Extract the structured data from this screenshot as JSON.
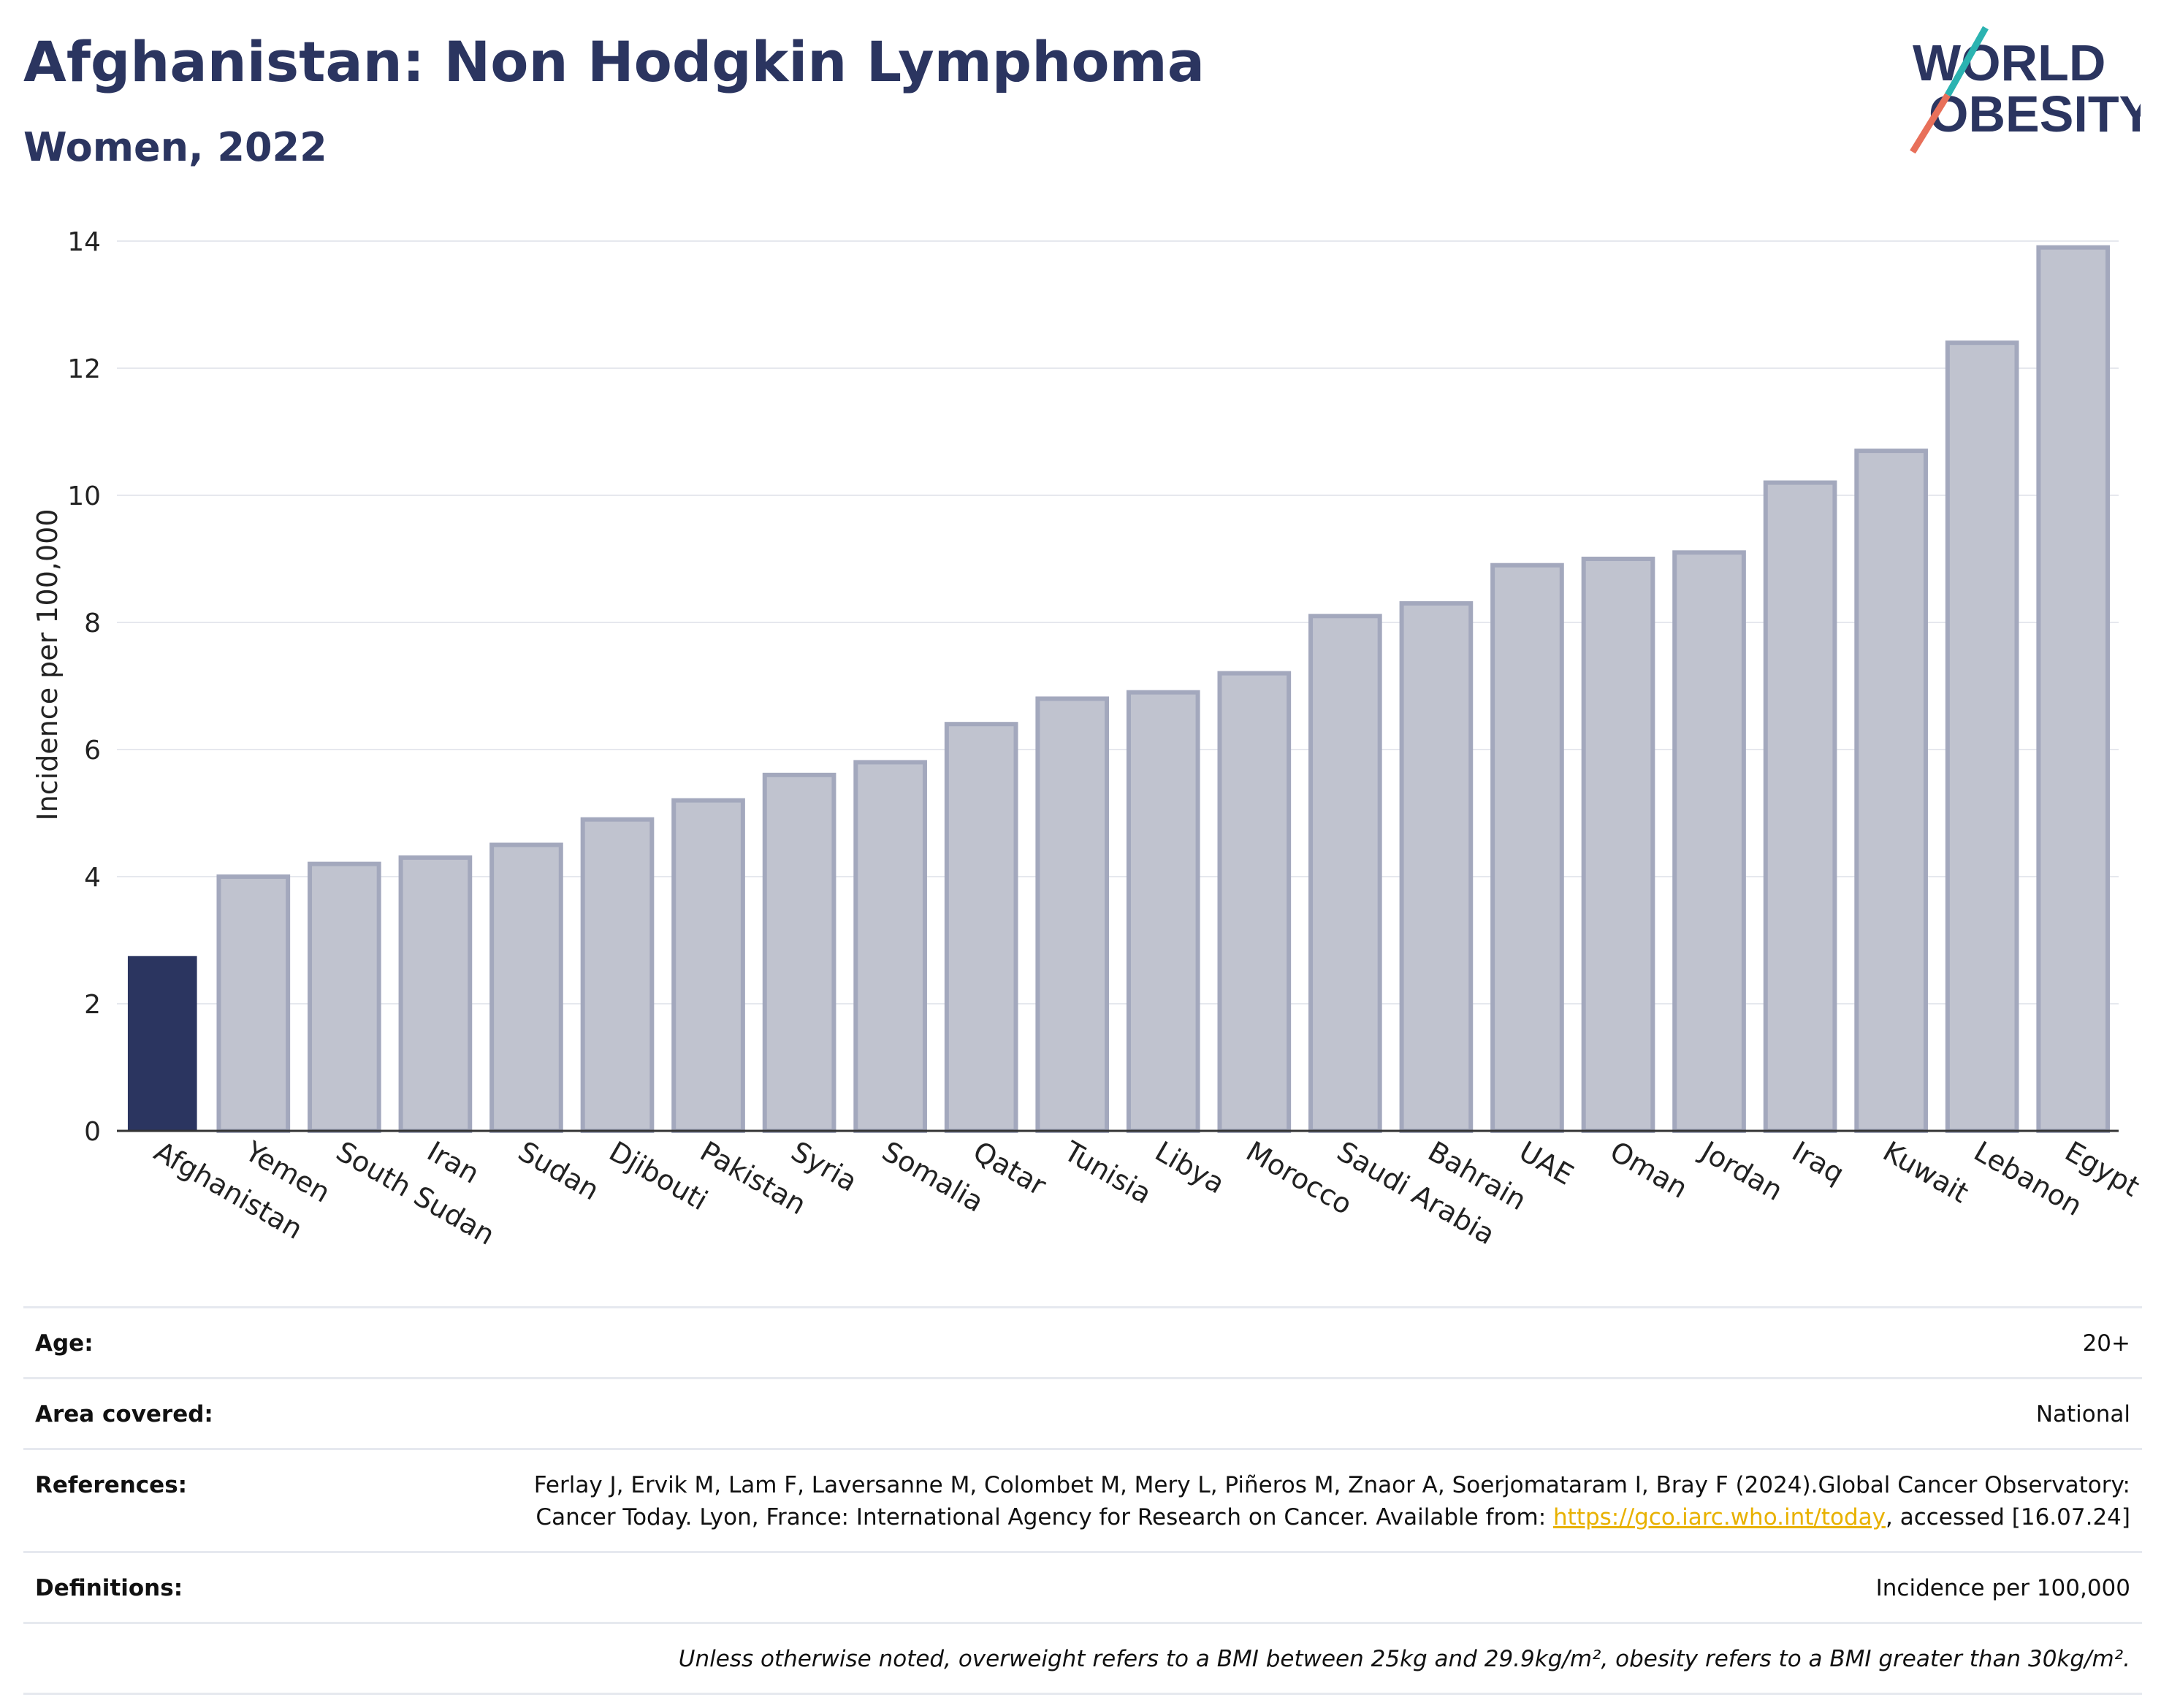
{
  "header": {
    "title": "Afghanistan: Non Hodgkin Lymphoma",
    "subtitle": "Women, 2022"
  },
  "logo": {
    "line1": "WORLD",
    "line2": "OBESITY",
    "colors": {
      "text": "#2b3560",
      "slash_teal": "#2bb3b1",
      "slash_coral": "#e8705a"
    }
  },
  "chart_data": {
    "type": "bar",
    "title": "",
    "xlabel": "",
    "ylabel": "Incidence per 100,000",
    "ylim": [
      0,
      14
    ],
    "yticks": [
      0,
      2,
      4,
      6,
      8,
      10,
      12,
      14
    ],
    "grid": true,
    "highlight_category": "Afghanistan",
    "colors": {
      "highlight": "#2b3560",
      "default_fill": "#c0c3cf",
      "default_stroke": "#a3a8bd"
    },
    "categories": [
      "Afghanistan",
      "Yemen",
      "South Sudan",
      "Iran",
      "Sudan",
      "Djibouti",
      "Pakistan",
      "Syria",
      "Somalia",
      "Qatar",
      "Tunisia",
      "Libya",
      "Morocco",
      "Saudi Arabia",
      "Bahrain",
      "UAE",
      "Oman",
      "Jordan",
      "Iraq",
      "Kuwait",
      "Lebanon",
      "Egypt"
    ],
    "values": [
      2.75,
      4.0,
      4.2,
      4.3,
      4.5,
      4.9,
      5.2,
      5.6,
      5.8,
      6.4,
      6.8,
      6.9,
      7.2,
      8.1,
      8.3,
      8.9,
      9.0,
      9.1,
      10.2,
      10.7,
      12.4,
      13.9
    ]
  },
  "info": {
    "rows": [
      {
        "label": "Age:",
        "value": "20+"
      },
      {
        "label": "Area covered:",
        "value": "National"
      },
      {
        "label": "References:",
        "value_before": "Ferlay J, Ervik M, Lam F, Laversanne M, Colombet M, Mery L, Piñeros M, Znaor A, Soerjomataram I, Bray F (2024).Global Cancer Observatory: Cancer Today. Lyon, France: International Agency for Research on Cancer. Available from: ",
        "link": "https://gco.iarc.who.int/today",
        "value_after": ", accessed [16.07.24]"
      },
      {
        "label": "Definitions:",
        "value": "Incidence per 100,000"
      }
    ],
    "note": "Unless otherwise noted, overweight refers to a BMI between 25kg and 29.9kg/m², obesity refers to a BMI greater than 30kg/m²."
  }
}
